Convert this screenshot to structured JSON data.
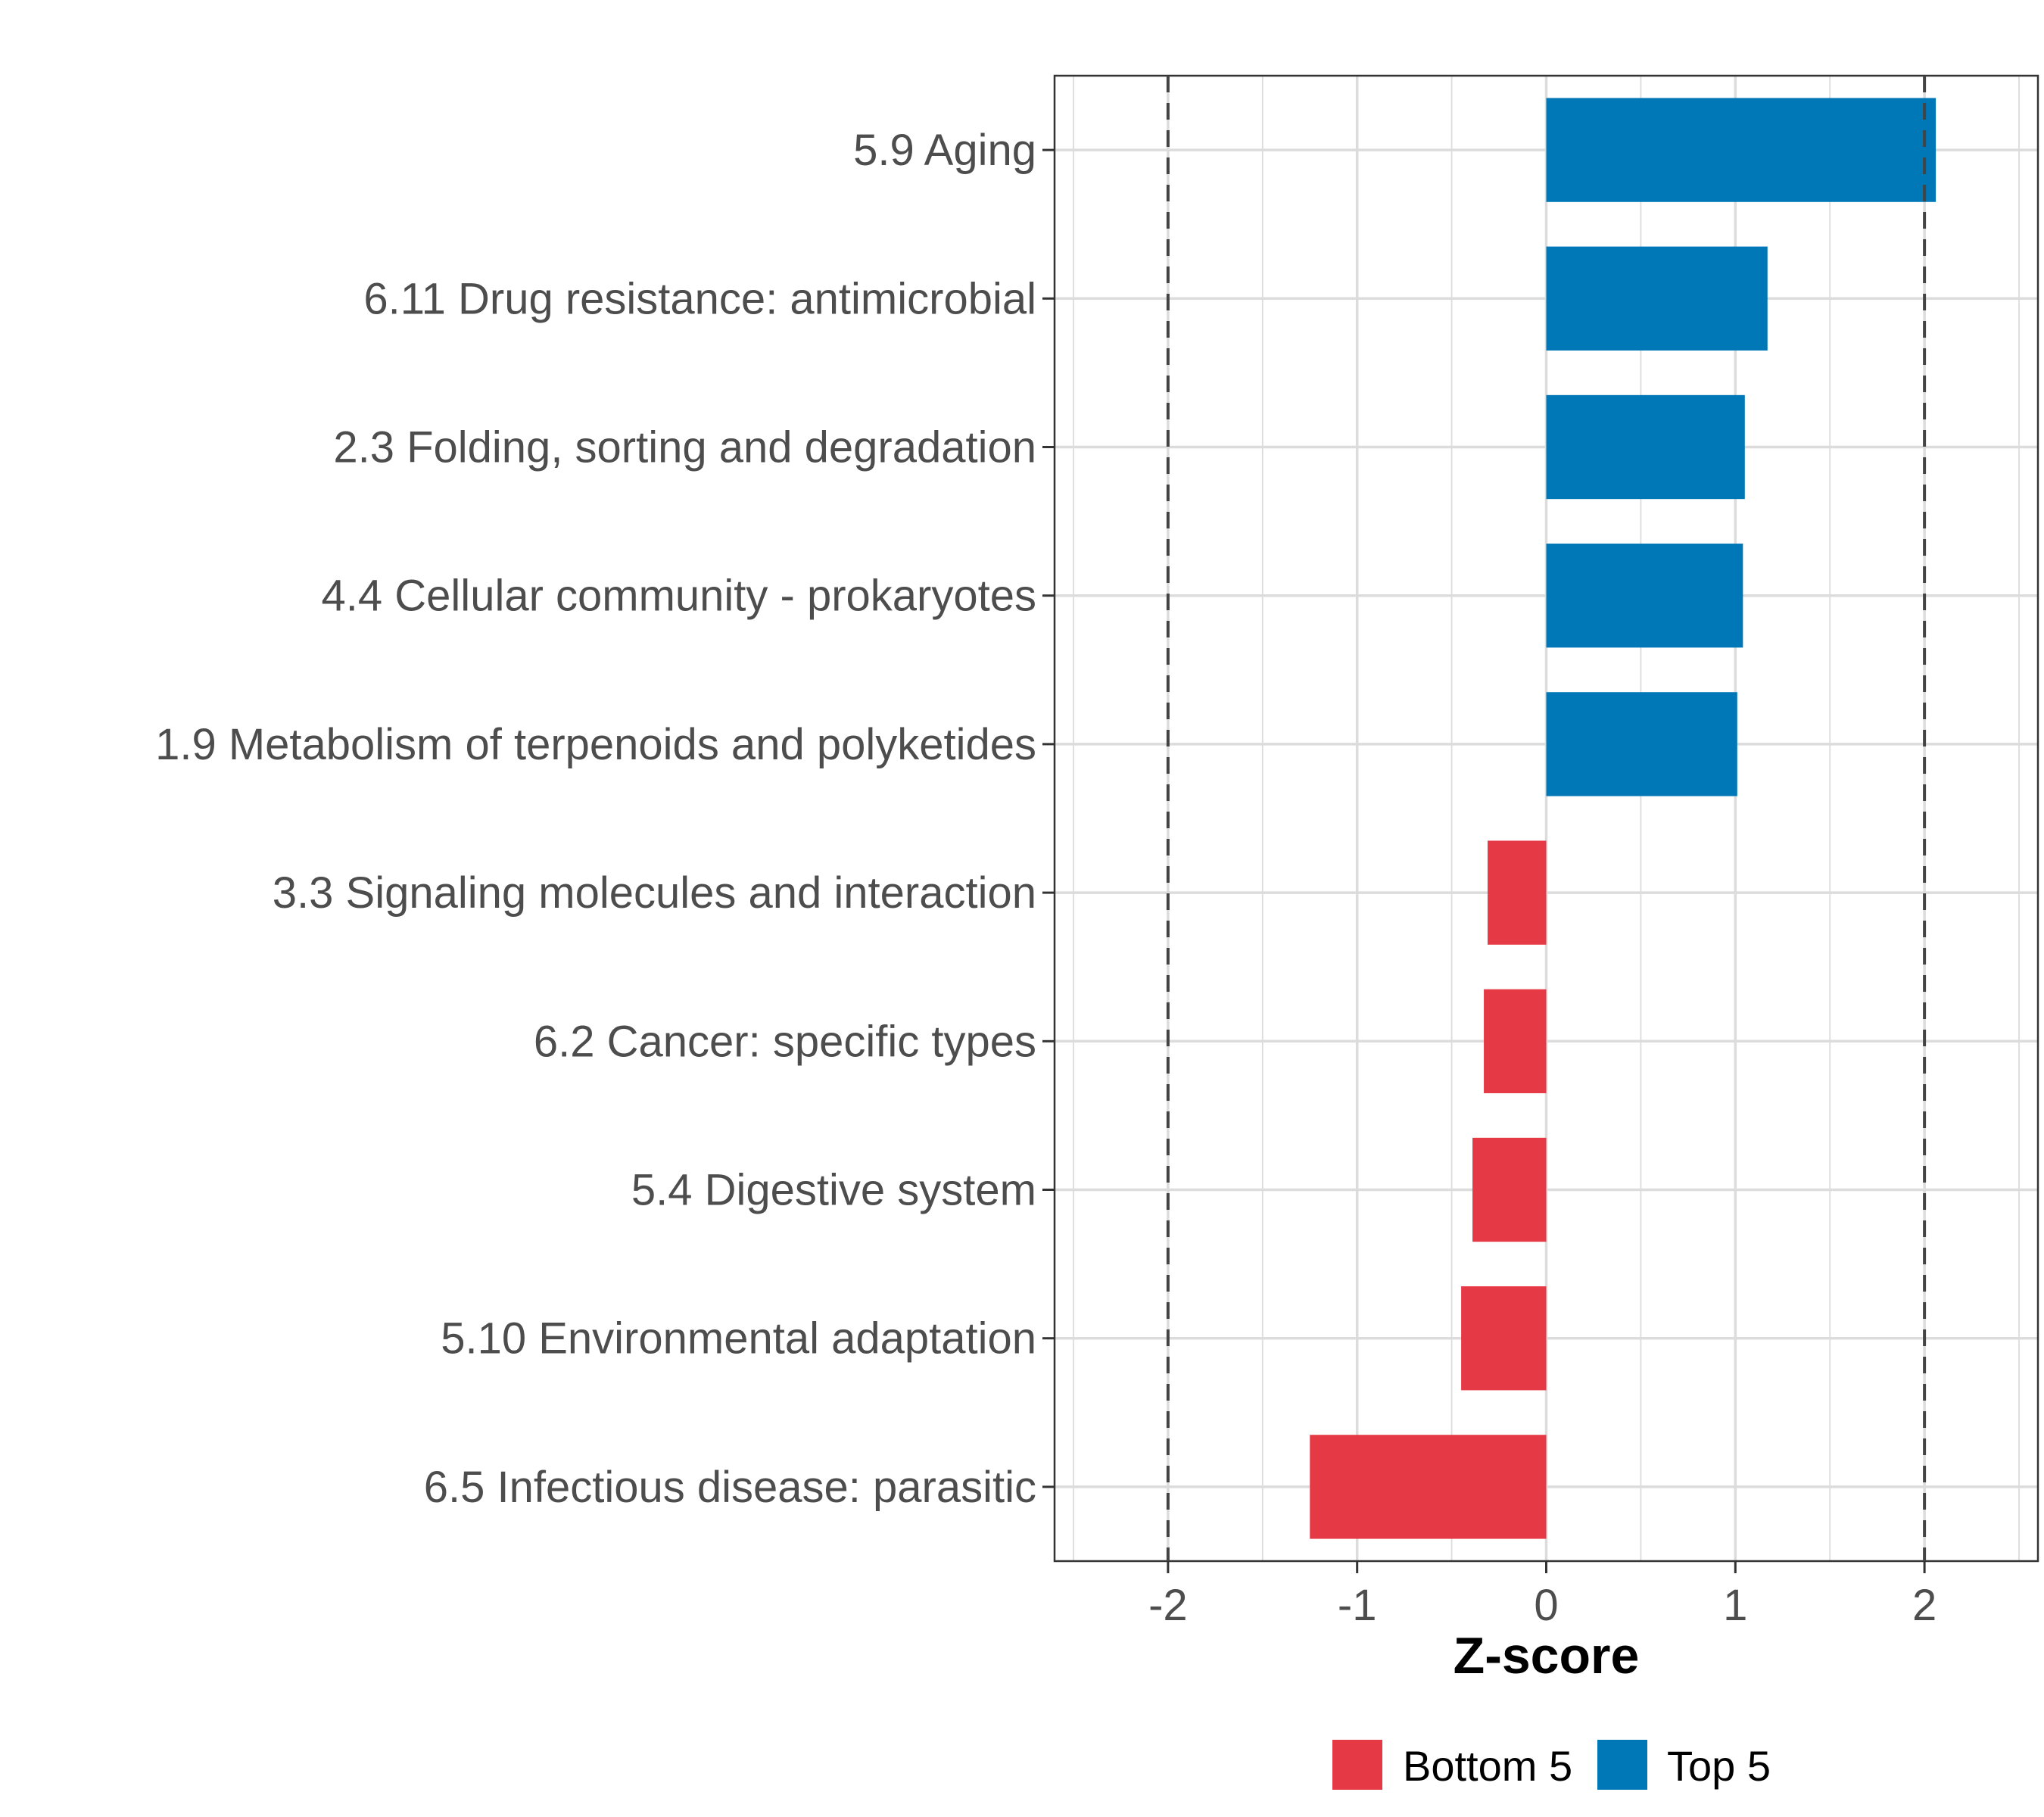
{
  "chart_data": {
    "type": "bar",
    "orientation": "horizontal",
    "xlabel": "Z-score",
    "xlim": [
      -2.6,
      2.6
    ],
    "xticks": [
      -2,
      -1,
      0,
      1,
      2
    ],
    "xtick_labels": [
      "-2",
      "-1",
      "0",
      "1",
      "2"
    ],
    "reference_lines": [
      -2,
      2
    ],
    "grid": true,
    "categories": [
      "5.9 Aging",
      "6.11 Drug resistance: antimicrobial",
      "2.3 Folding, sorting and degradation",
      "4.4 Cellular community - prokaryotes",
      "1.9 Metabolism of terpenoids and polyketides",
      "3.3 Signaling molecules and interaction",
      "6.2 Cancer: specific types",
      "5.4 Digestive system",
      "5.10 Environmental adaptation",
      "6.5 Infectious disease: parasitic"
    ],
    "values": [
      2.06,
      1.17,
      1.05,
      1.04,
      1.01,
      -0.31,
      -0.33,
      -0.39,
      -0.45,
      -1.25
    ],
    "groups": [
      "Top 5",
      "Top 5",
      "Top 5",
      "Top 5",
      "Top 5",
      "Bottom 5",
      "Bottom 5",
      "Bottom 5",
      "Bottom 5",
      "Bottom 5"
    ],
    "legend": [
      {
        "label": "Bottom 5",
        "color": "#e63946"
      },
      {
        "label": "Top 5",
        "color": "#0077b6"
      }
    ],
    "legend_position": "bottom"
  }
}
